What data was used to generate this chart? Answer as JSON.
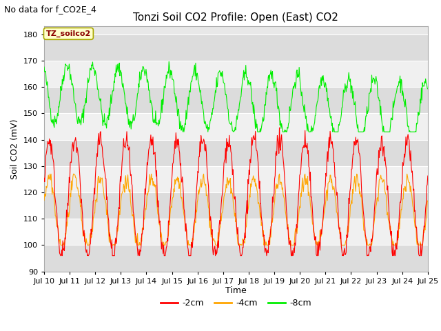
{
  "title": "Tonzi Soil CO2 Profile: Open (East) CO2",
  "subtitle": "No data for f_CO2E_4",
  "ylabel": "Soil CO2 (mV)",
  "xlabel": "Time",
  "ylim": [
    90,
    183
  ],
  "yticks": [
    90,
    100,
    110,
    120,
    130,
    140,
    150,
    160,
    170,
    180
  ],
  "xtick_labels": [
    "Jul 10",
    "Jul 11",
    "Jul 12",
    "Jul 13",
    "Jul 14",
    "Jul 15",
    "Jul 16",
    "Jul 17",
    "Jul 18",
    "Jul 19",
    "Jul 20",
    "Jul 21",
    "Jul 22",
    "Jul 23",
    "Jul 24",
    "Jul 25"
  ],
  "color_2cm": "#ff0000",
  "color_4cm": "#ffa500",
  "color_8cm": "#00ee00",
  "legend_label_2cm": "-2cm",
  "legend_label_4cm": "-4cm",
  "legend_label_8cm": "-8cm",
  "annotation_text": "TZ_soilco2",
  "fig_bg_color": "#ffffff",
  "plot_bg_color": "#e8e8e8",
  "band_color_light": "#f0f0f0",
  "band_color_dark": "#dcdcdc",
  "title_fontsize": 11,
  "axis_fontsize": 9,
  "tick_fontsize": 8,
  "legend_fontsize": 9,
  "subtitle_fontsize": 9
}
